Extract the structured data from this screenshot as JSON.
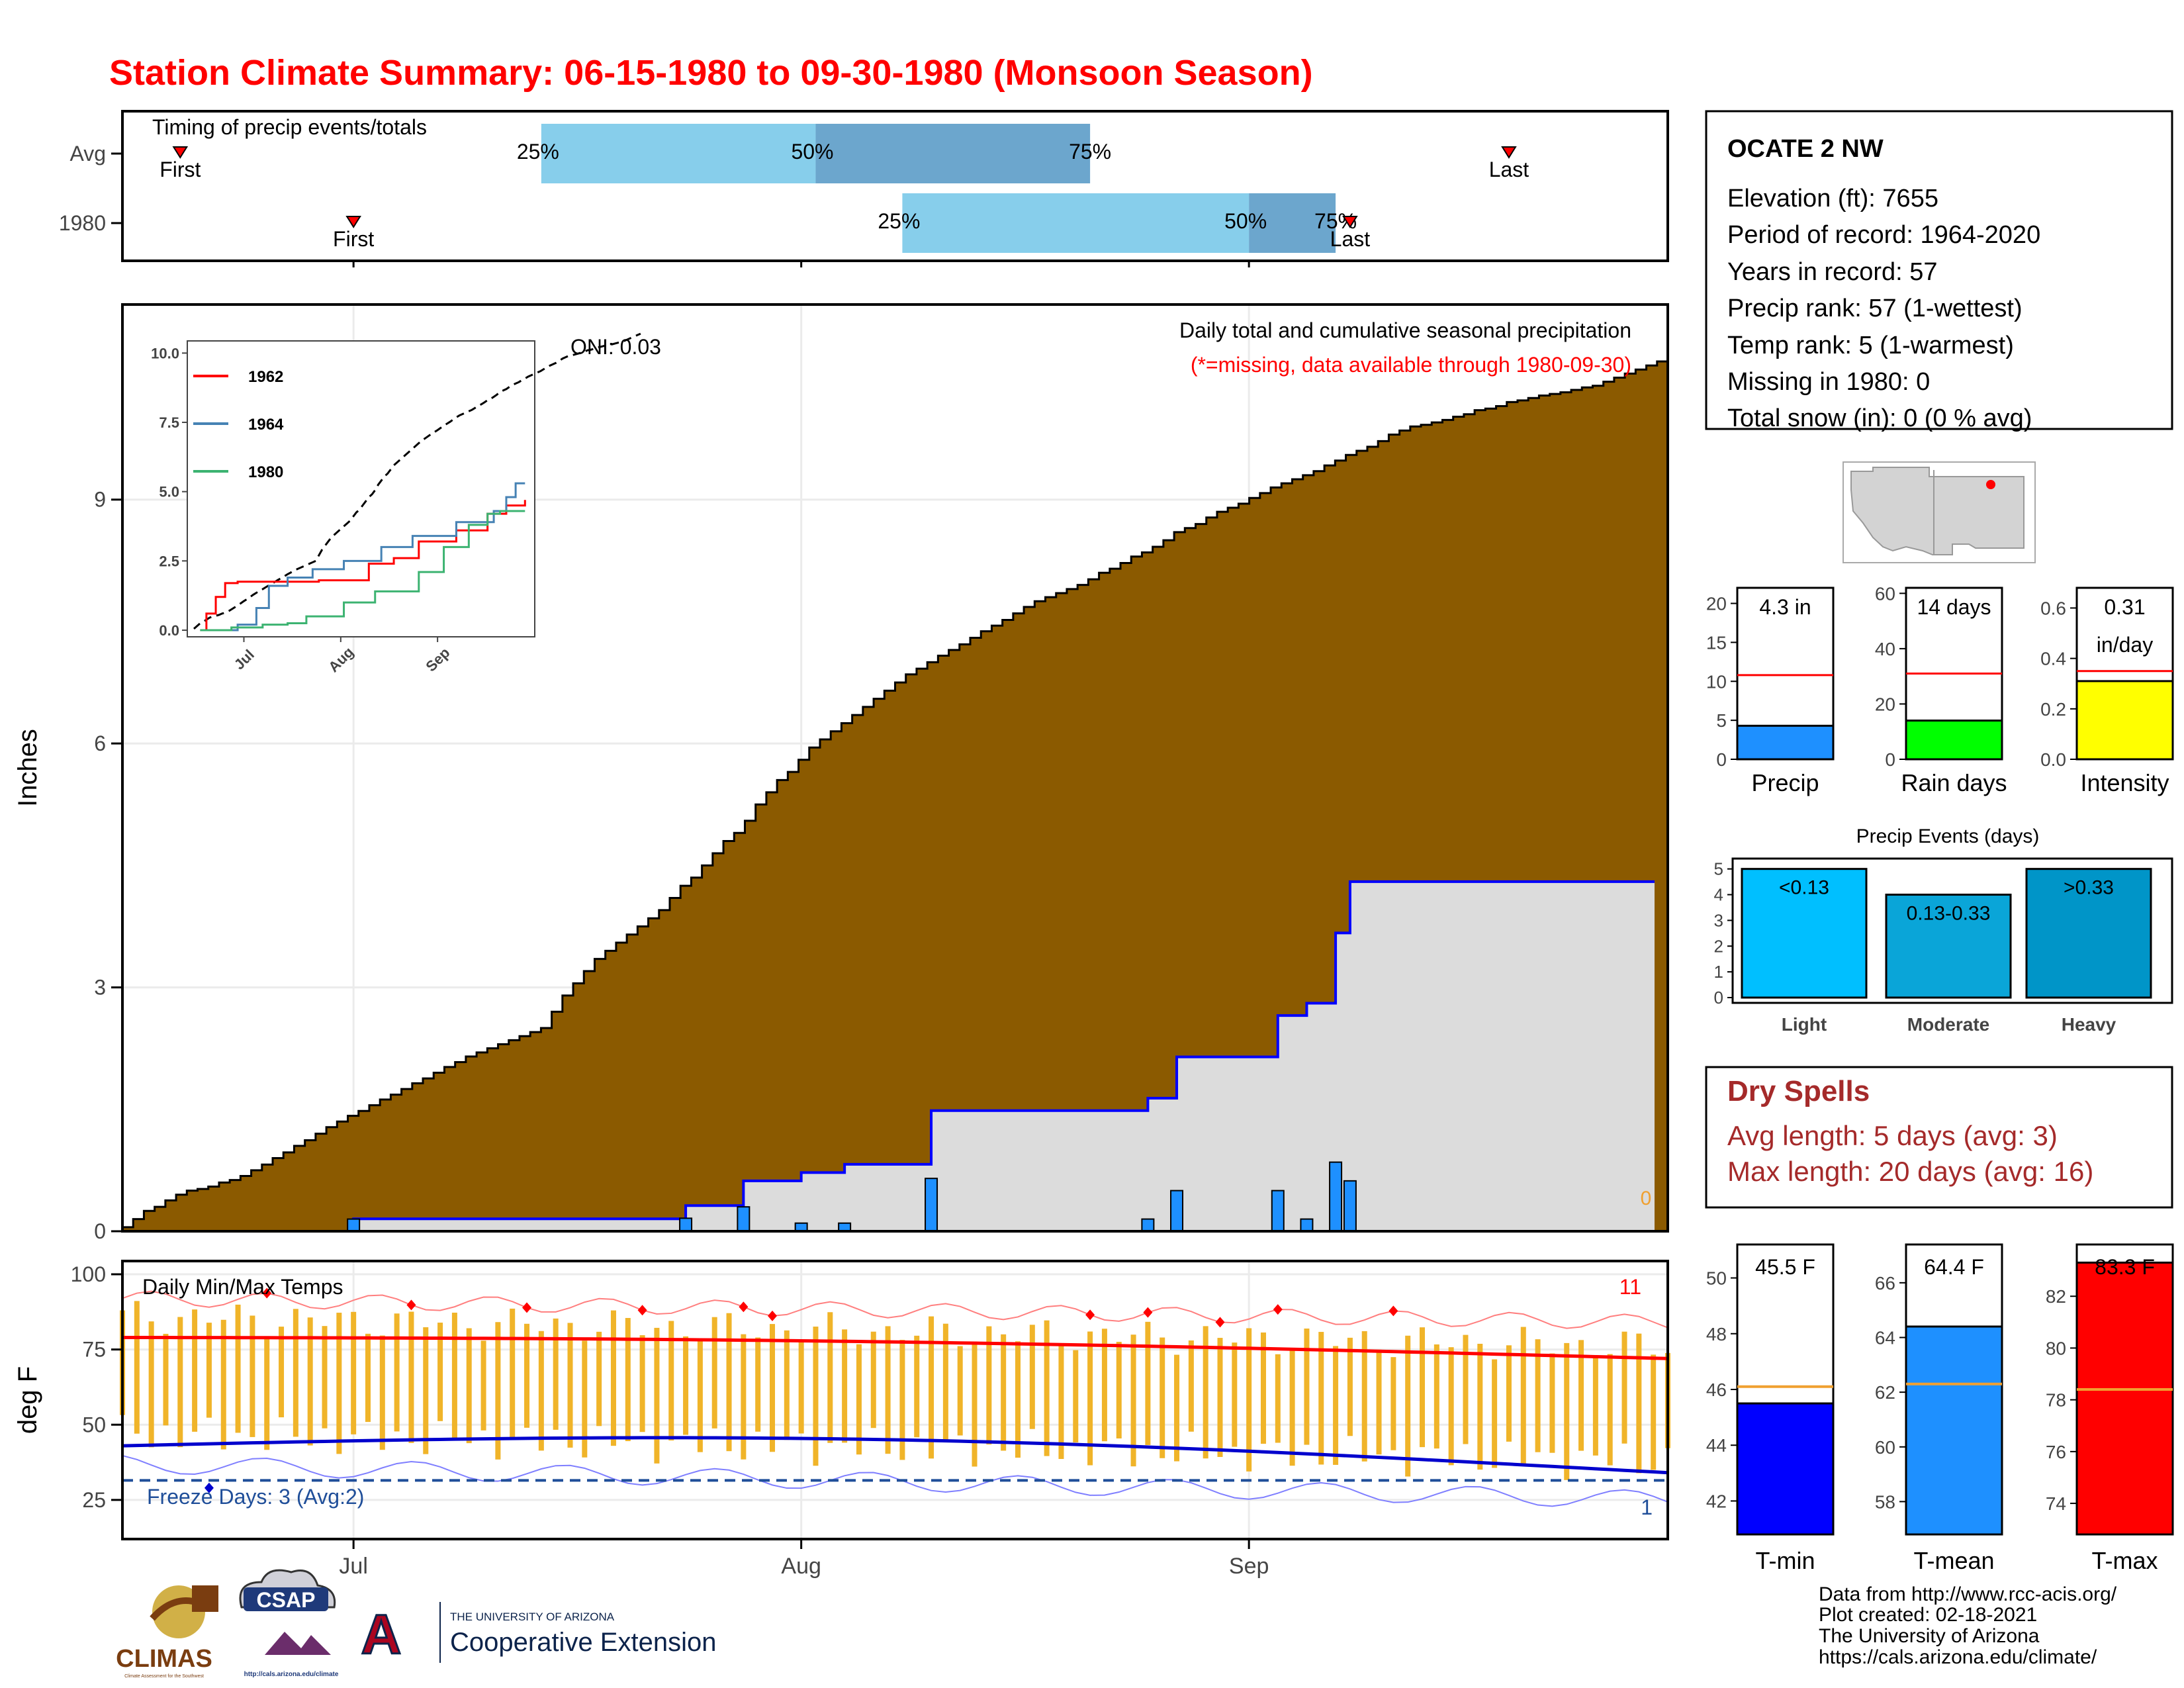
{
  "page": {
    "title": "Station Climate Summary: 06-15-1980 to 09-30-1980 (Monsoon Season)",
    "title_color": "#ff0000"
  },
  "months": [
    "Jul",
    "Aug",
    "Sep"
  ],
  "timing": {
    "title": "Timing of precip events/totals",
    "rows": [
      {
        "label": "Avg",
        "first_label": "First",
        "last_label": "Last",
        "first_day": 4,
        "last_day": 96,
        "p25": 29,
        "p50": 48,
        "p75": 67,
        "p25_label": "25%",
        "p50_label": "50%",
        "p75_label": "75%"
      },
      {
        "label": "1980",
        "first_day": 16,
        "first_label": "First",
        "last_day": 85,
        "last_label": "Last",
        "p25": 54,
        "p50": 78,
        "p75": 84,
        "p25_label": "25%",
        "p50_label": "50%",
        "p75_label": "75%"
      }
    ],
    "colors": {
      "light": "#87ceeb",
      "dark": "#6ca6cd",
      "marker": "#ff0000"
    }
  },
  "precip_panel": {
    "title": "Daily total and cumulative seasonal precipitation",
    "note": "(*=missing, data available through 1980-09-30)",
    "note_color": "#ff0000",
    "oni": "ONI: 0.03",
    "ylabel": "Inches",
    "yticks": [
      "0",
      "3",
      "6",
      "9"
    ],
    "missing_count": "0",
    "colors": {
      "avg_fill": "#8b5a00",
      "obs_fill": "#dcdcdc",
      "obs_line": "#0000ff",
      "bar": "#1e90ff"
    }
  },
  "inset": {
    "yticks": [
      "0.0",
      "2.5",
      "5.0",
      "7.5",
      "10.0"
    ],
    "xticks": [
      "Jul",
      "Aug",
      "Sep"
    ],
    "legend": [
      {
        "name": "1962",
        "color": "#ff0000"
      },
      {
        "name": "1964",
        "color": "#4682b4"
      },
      {
        "name": "1980",
        "color": "#3cb371"
      }
    ]
  },
  "temp_panel": {
    "title": "Daily Min/Max Temps",
    "ylabel": "deg F",
    "yticks": [
      "25",
      "50",
      "75",
      "100"
    ],
    "freeze_label": "Freeze Days: 3 (Avg:2)",
    "hot_count": "11",
    "freeze_count": "1",
    "colors": {
      "bar": "#f0b429",
      "max_line": "#ff0000",
      "min_line": "#0000cd",
      "freeze_line": "#1f4e99"
    }
  },
  "station": {
    "name": "OCATE 2 NW",
    "lines": [
      "Elevation (ft): 7655",
      "Period of record: 1964-2020",
      "Years in record: 57",
      "Precip rank: 57 (1-wettest)",
      "Temp rank: 5 (1-warmest)",
      "Missing in 1980: 0",
      "Total snow (in): 0 (0 % avg)"
    ]
  },
  "summary_bars": [
    {
      "label": "Precip",
      "value_label": "4.3 in",
      "value": 4.3,
      "avg": 10.8,
      "ymax": 22,
      "yticks": [
        "0",
        "5",
        "10",
        "15",
        "20"
      ],
      "tick_values": [
        0,
        5,
        10,
        15,
        20
      ],
      "color": "#1e90ff"
    },
    {
      "label": "Rain days",
      "value_label": "14 days",
      "value": 14,
      "avg": 31,
      "ymax": 62,
      "yticks": [
        "0",
        "20",
        "40",
        "60"
      ],
      "tick_values": [
        0,
        20,
        40,
        60
      ],
      "color": "#00ff00"
    },
    {
      "label": "Intensity",
      "value_label": "0.31",
      "value_label2": "in/day",
      "value": 0.31,
      "avg": 0.35,
      "ymax": 0.68,
      "yticks": [
        "0.0",
        "0.2",
        "0.4",
        "0.6"
      ],
      "tick_values": [
        0,
        0.2,
        0.4,
        0.6
      ],
      "color": "#ffff00"
    }
  ],
  "events": {
    "title": "Precip Events (days)",
    "yticks": [
      "0",
      "1",
      "2",
      "3",
      "4",
      "5"
    ],
    "bars": [
      {
        "label": "Light",
        "range": "<0.13",
        "value": 5,
        "color": "#00bfff"
      },
      {
        "label": "Moderate",
        "range": "0.13-0.33",
        "value": 4,
        "color": "#0aa5d8"
      },
      {
        "label": "Heavy",
        "range": ">0.33",
        "value": 5,
        "color": "#0095c8"
      }
    ]
  },
  "dry_spells": {
    "title": "Dry Spells",
    "avg_line": "Avg length: 5 days (avg: 3)",
    "max_line": "Max length: 20 days (avg: 16)",
    "color": "#a52a2a"
  },
  "temp_bars": [
    {
      "label": "T-min",
      "value_label": "45.5 F",
      "value": 45.5,
      "avg": 46.1,
      "ymin": 40.8,
      "ymax": 51.2,
      "yticks": [
        "42",
        "44",
        "46",
        "48",
        "50"
      ],
      "tick_values": [
        42,
        44,
        46,
        48,
        50
      ],
      "color": "#0000ff"
    },
    {
      "label": "T-mean",
      "value_label": "64.4 F",
      "value": 64.4,
      "avg": 62.3,
      "ymin": 56.8,
      "ymax": 67.4,
      "yticks": [
        "58",
        "60",
        "62",
        "64",
        "66"
      ],
      "tick_values": [
        58,
        60,
        62,
        64,
        66
      ],
      "color": "#1e90ff"
    },
    {
      "label": "T-max",
      "value_label": "83.3 F",
      "value": 83.3,
      "avg": 78.4,
      "ymin": 72.8,
      "ymax": 84.0,
      "yticks": [
        "74",
        "76",
        "78",
        "80",
        "82"
      ],
      "tick_values": [
        74,
        76,
        78,
        80,
        82
      ],
      "color": "#ff0000"
    }
  ],
  "credits": [
    "Data from http://www.rcc-acis.org/",
    "Plot created: 02-18-2021",
    "The University of Arizona",
    "https://cals.arizona.edu/climate/"
  ],
  "logos": {
    "climas": "CLIMAS",
    "climas_sub": "Climate Assessment for the Southwest",
    "csap": "CSAP",
    "csap_url": "http://cals.arizona.edu/climate",
    "ua_letter": "A",
    "ua_top": "THE UNIVERSITY OF ARIZONA",
    "ua_bottom": "Cooperative Extension"
  },
  "chart_data": [
    {
      "type": "area",
      "title": "Daily total and cumulative seasonal precipitation",
      "ylabel": "Inches",
      "ylim": [
        0,
        11.4
      ],
      "x_range": [
        "06-15",
        "09-30"
      ],
      "avg_cumulative": [
        0.05,
        0.15,
        0.25,
        0.3,
        0.38,
        0.45,
        0.5,
        0.52,
        0.55,
        0.6,
        0.63,
        0.68,
        0.75,
        0.82,
        0.9,
        0.97,
        1.05,
        1.12,
        1.2,
        1.28,
        1.35,
        1.42,
        1.48,
        1.55,
        1.62,
        1.68,
        1.75,
        1.82,
        1.88,
        1.95,
        2.02,
        2.08,
        2.15,
        2.2,
        2.25,
        2.3,
        2.35,
        2.4,
        2.45,
        2.5,
        2.7,
        2.9,
        3.05,
        3.2,
        3.35,
        3.45,
        3.55,
        3.65,
        3.75,
        3.85,
        3.95,
        4.1,
        4.25,
        4.35,
        4.5,
        4.65,
        4.8,
        4.9,
        5.05,
        5.25,
        5.4,
        5.55,
        5.65,
        5.8,
        5.95,
        6.05,
        6.15,
        6.25,
        6.35,
        6.45,
        6.55,
        6.65,
        6.75,
        6.85,
        6.92,
        7.0,
        7.08,
        7.15,
        7.22,
        7.3,
        7.38,
        7.45,
        7.52,
        7.6,
        7.68,
        7.75,
        7.8,
        7.85,
        7.9,
        7.95,
        8.02,
        8.1,
        8.15,
        8.22,
        8.3,
        8.35,
        8.42,
        8.5,
        8.6,
        8.65,
        8.7,
        8.78,
        8.85,
        8.9,
        8.95,
        9.02,
        9.08,
        9.15,
        9.2,
        9.25,
        9.3,
        9.35,
        9.42,
        9.48,
        9.55,
        9.6,
        9.65,
        9.72,
        9.8,
        9.85,
        9.9,
        9.92,
        9.95,
        9.98,
        10.02,
        10.05,
        10.1,
        10.12,
        10.15,
        10.2,
        10.22,
        10.25,
        10.28,
        10.3,
        10.32,
        10.35,
        10.38,
        10.4,
        10.45,
        10.5,
        10.55,
        10.6,
        10.65,
        10.7
      ],
      "obs_events": [
        {
          "date": "07-01",
          "value": 0.15
        },
        {
          "date": "07-24",
          "value": 0.16
        },
        {
          "date": "07-28",
          "value": 0.3
        },
        {
          "date": "08-01",
          "value": 0.1
        },
        {
          "date": "08-04",
          "value": 0.1
        },
        {
          "date": "08-10",
          "value": 0.65
        },
        {
          "date": "08-25",
          "value": 0.15
        },
        {
          "date": "08-27",
          "value": 0.5
        },
        {
          "date": "09-03",
          "value": 0.5
        },
        {
          "date": "09-05",
          "value": 0.15
        },
        {
          "date": "09-07",
          "value": 0.85
        },
        {
          "date": "09-08",
          "value": 0.62
        }
      ],
      "obs_total": 4.3
    },
    {
      "type": "line",
      "title": "Daily Min/Max Temps",
      "ylabel": "deg F",
      "ylim": [
        12,
        100
      ],
      "avg_max_start": 79,
      "avg_max_end": 72,
      "avg_min_start": 43,
      "avg_min_end": 35,
      "freeze_line": 31.5,
      "freeze_days": 3,
      "freeze_days_avg": 2
    }
  ]
}
